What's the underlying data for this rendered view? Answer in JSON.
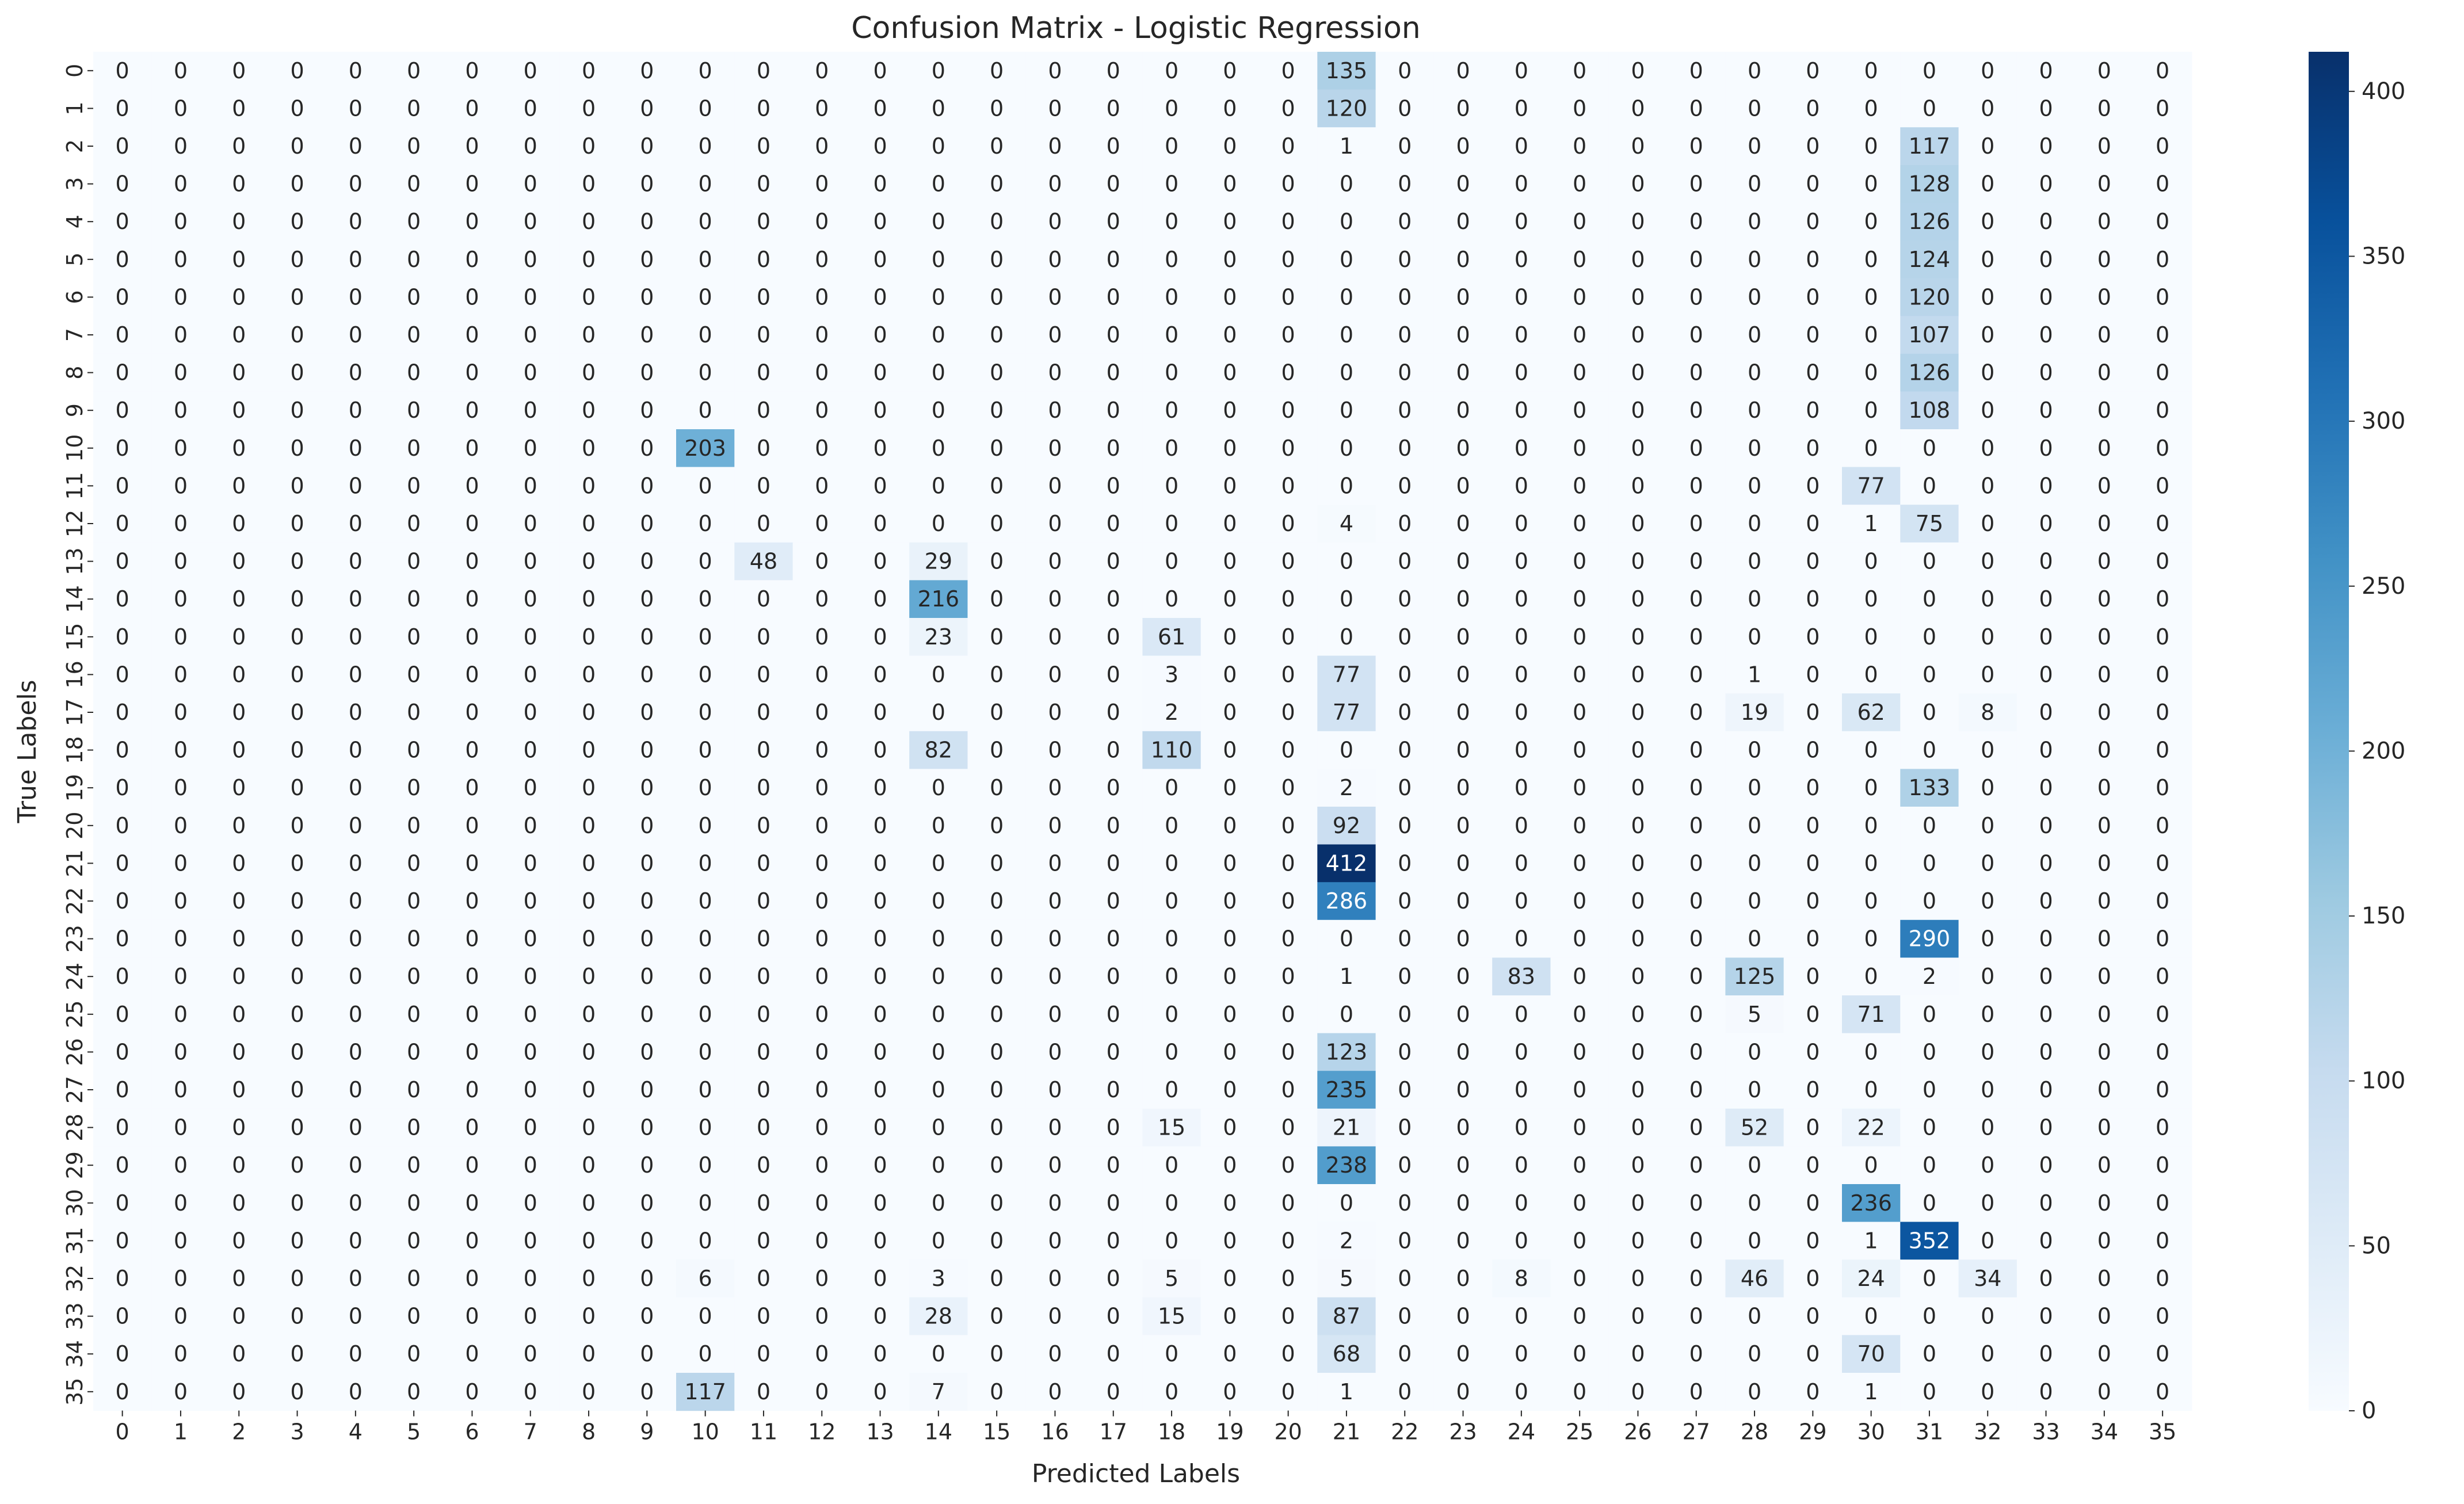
{
  "chart_data": {
    "type": "heatmap",
    "title": "Confusion Matrix - Logistic Regression",
    "xlabel": "Predicted Labels",
    "ylabel": "True Labels",
    "colormap": "Blues",
    "colorbar": {
      "min": 0,
      "max": 412,
      "ticks": [
        0,
        50,
        100,
        150,
        200,
        250,
        300,
        350,
        400
      ]
    },
    "x_categories": [
      "0",
      "1",
      "2",
      "3",
      "4",
      "5",
      "6",
      "7",
      "8",
      "9",
      "10",
      "11",
      "12",
      "13",
      "14",
      "15",
      "16",
      "17",
      "18",
      "19",
      "20",
      "21",
      "22",
      "23",
      "24",
      "25",
      "26",
      "27",
      "28",
      "29",
      "30",
      "31",
      "32",
      "33",
      "34",
      "35"
    ],
    "y_categories": [
      "0",
      "1",
      "2",
      "3",
      "4",
      "5",
      "6",
      "7",
      "8",
      "9",
      "10",
      "11",
      "12",
      "13",
      "14",
      "15",
      "16",
      "17",
      "18",
      "19",
      "20",
      "21",
      "22",
      "23",
      "24",
      "25",
      "26",
      "27",
      "28",
      "29",
      "30",
      "31",
      "32",
      "33",
      "34",
      "35"
    ],
    "cells": [
      [
        0,
        21,
        135
      ],
      [
        1,
        21,
        120
      ],
      [
        2,
        21,
        1
      ],
      [
        2,
        31,
        117
      ],
      [
        3,
        31,
        128
      ],
      [
        4,
        31,
        126
      ],
      [
        5,
        31,
        124
      ],
      [
        6,
        31,
        120
      ],
      [
        7,
        31,
        107
      ],
      [
        8,
        31,
        126
      ],
      [
        9,
        31,
        108
      ],
      [
        10,
        10,
        203
      ],
      [
        11,
        30,
        77
      ],
      [
        12,
        21,
        4
      ],
      [
        12,
        30,
        1
      ],
      [
        12,
        31,
        75
      ],
      [
        13,
        11,
        48
      ],
      [
        13,
        14,
        29
      ],
      [
        14,
        14,
        216
      ],
      [
        15,
        14,
        23
      ],
      [
        15,
        18,
        61
      ],
      [
        16,
        18,
        3
      ],
      [
        16,
        21,
        77
      ],
      [
        16,
        28,
        1
      ],
      [
        17,
        18,
        2
      ],
      [
        17,
        21,
        77
      ],
      [
        17,
        28,
        19
      ],
      [
        17,
        30,
        62
      ],
      [
        17,
        32,
        8
      ],
      [
        18,
        14,
        82
      ],
      [
        18,
        18,
        110
      ],
      [
        19,
        21,
        2
      ],
      [
        19,
        31,
        133
      ],
      [
        20,
        21,
        92
      ],
      [
        21,
        21,
        412
      ],
      [
        22,
        21,
        286
      ],
      [
        23,
        31,
        290
      ],
      [
        24,
        21,
        1
      ],
      [
        24,
        24,
        83
      ],
      [
        24,
        28,
        125
      ],
      [
        24,
        31,
        2
      ],
      [
        25,
        28,
        5
      ],
      [
        25,
        30,
        71
      ],
      [
        26,
        21,
        123
      ],
      [
        27,
        21,
        235
      ],
      [
        28,
        18,
        15
      ],
      [
        28,
        21,
        21
      ],
      [
        28,
        28,
        52
      ],
      [
        28,
        30,
        22
      ],
      [
        29,
        21,
        238
      ],
      [
        30,
        30,
        236
      ],
      [
        31,
        21,
        2
      ],
      [
        31,
        30,
        1
      ],
      [
        31,
        31,
        352
      ],
      [
        32,
        10,
        6
      ],
      [
        32,
        14,
        3
      ],
      [
        32,
        18,
        5
      ],
      [
        32,
        21,
        5
      ],
      [
        32,
        24,
        8
      ],
      [
        32,
        28,
        46
      ],
      [
        32,
        30,
        24
      ],
      [
        32,
        32,
        34
      ],
      [
        33,
        14,
        28
      ],
      [
        33,
        18,
        15
      ],
      [
        33,
        21,
        87
      ],
      [
        34,
        21,
        68
      ],
      [
        34,
        30,
        70
      ],
      [
        35,
        10,
        117
      ],
      [
        35,
        14,
        7
      ],
      [
        35,
        21,
        1
      ],
      [
        35,
        30,
        1
      ]
    ]
  }
}
